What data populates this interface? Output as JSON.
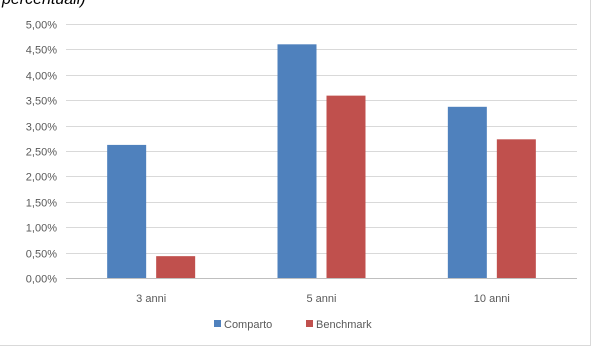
{
  "caption": "percentuali)",
  "chart_data": {
    "type": "bar",
    "title": "",
    "xlabel": "",
    "ylabel": "",
    "categories": [
      "3 anni",
      "5 anni",
      "10 anni"
    ],
    "series": [
      {
        "name": "Comparto",
        "color": "#4f81bd",
        "values": [
          2.62,
          4.6,
          3.37
        ]
      },
      {
        "name": "Benchmark",
        "color": "#c0504d",
        "values": [
          0.43,
          3.59,
          2.73
        ]
      }
    ],
    "ylim": [
      0,
      5
    ],
    "yticks": [
      0,
      0.5,
      1,
      1.5,
      2,
      2.5,
      3,
      3.5,
      4,
      4.5,
      5
    ],
    "ytick_labels": [
      "0,00%",
      "0,50%",
      "1,00%",
      "1,50%",
      "2,00%",
      "2,50%",
      "3,00%",
      "3,50%",
      "4,00%",
      "4,50%",
      "5,00%"
    ],
    "grid": true,
    "legend_position": "bottom"
  }
}
